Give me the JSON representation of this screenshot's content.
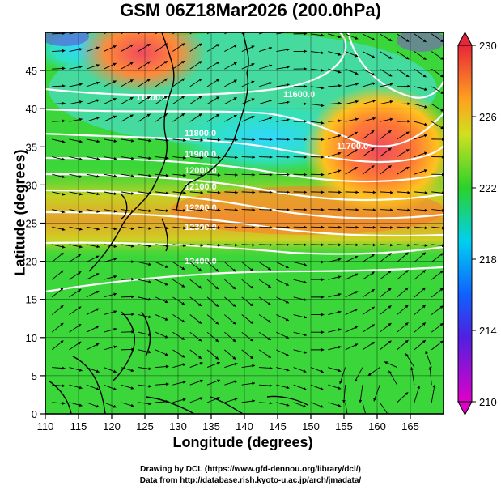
{
  "title": "GSM 06Z18Mar2026 (200.0hPa)",
  "xlabel": "Longitude (degrees)",
  "ylabel": "Latitude  (degrees)",
  "credit_line1": "Drawing by DCL (https://www.gfd-dennou.org/library/dcl/)",
  "credit_line2": "Data from http://database.rish.kyoto-u.ac.jp/arch/jmadata/",
  "chart_data": {
    "type": "heatmap",
    "x_range": [
      110,
      170
    ],
    "y_range": [
      0,
      50
    ],
    "x_ticks": [
      "110",
      "115",
      "120",
      "125",
      "130",
      "135",
      "140",
      "145",
      "150",
      "155",
      "160",
      "165"
    ],
    "y_ticks": [
      "0",
      "5",
      "10",
      "15",
      "20",
      "25",
      "30",
      "35",
      "40",
      "45"
    ],
    "colorbar": {
      "min": 210,
      "max": 230,
      "labels": [
        "210",
        "214",
        "218",
        "222",
        "226",
        "230"
      ],
      "colors": [
        "#e000c8",
        "#3030ff",
        "#00c8ff",
        "#2ad22a",
        "#ff9a1e",
        "#e8263a"
      ]
    },
    "contour_labels": [
      "11600.0",
      "11600.0",
      "11800.0",
      "11900.0",
      "12000.0",
      "12100.0",
      "12200.0",
      "11700.0",
      "12300.0",
      "12400.0"
    ],
    "colors": {
      "background_field": "#3ad63a",
      "warm_max": "#f04060",
      "cool_min": "#30d8ff",
      "contour": "#ffffff",
      "coast": "#000000"
    }
  }
}
